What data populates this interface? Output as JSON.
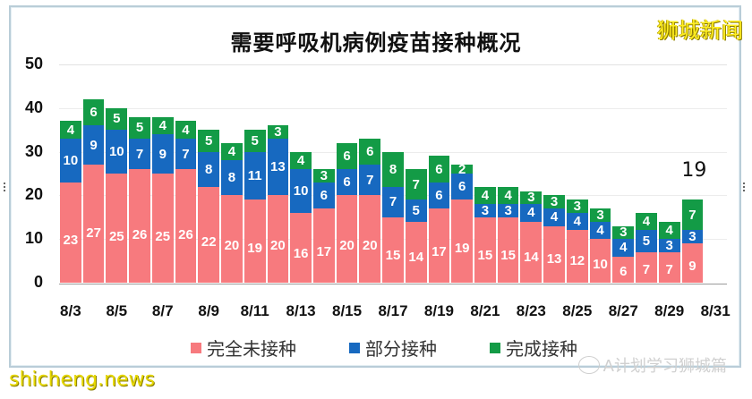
{
  "title": "需要呼吸机病例疫苗接种概况",
  "brand": "狮城新闻",
  "footer": {
    "left_watermark": "shicheng.news",
    "right_watermark": "A计划学习狮城篇"
  },
  "legend": [
    {
      "label": "完全未接种",
      "color": "#f77a7e"
    },
    {
      "label": "部分接种",
      "color": "#1769c0"
    },
    {
      "label": "完成接种",
      "color": "#139b46"
    }
  ],
  "annotation": {
    "text": "19",
    "date": "8/30"
  },
  "chart_data": {
    "type": "bar",
    "stacked": true,
    "title": "需要呼吸机病例疫苗接种概况",
    "xlabel": "",
    "ylabel": "",
    "ylim": [
      0,
      50
    ],
    "yticks": [
      "0",
      "10",
      "20",
      "30",
      "40",
      "50"
    ],
    "xticks": [
      "8/3",
      "8/5",
      "8/7",
      "8/9",
      "8/11",
      "8/13",
      "8/15",
      "8/17",
      "8/19",
      "8/21",
      "8/23",
      "8/25",
      "8/27",
      "8/29",
      "8/31"
    ],
    "grid": true,
    "legend_position": "bottom",
    "categories": [
      "8/3",
      "8/4",
      "8/5",
      "8/6",
      "8/7",
      "8/8",
      "8/9",
      "8/10",
      "8/11",
      "8/12",
      "8/13",
      "8/14",
      "8/15",
      "8/16",
      "8/17",
      "8/18",
      "8/19",
      "8/20",
      "8/21",
      "8/22",
      "8/23",
      "8/24",
      "8/25",
      "8/26",
      "8/27",
      "8/28",
      "8/29",
      "8/30"
    ],
    "series": [
      {
        "name": "完全未接种",
        "color": "#f77a7e",
        "values": [
          23,
          27,
          25,
          26,
          25,
          26,
          22,
          20,
          19,
          20,
          16,
          17,
          20,
          20,
          15,
          14,
          17,
          19,
          15,
          15,
          14,
          13,
          12,
          10,
          6,
          7,
          7,
          9
        ]
      },
      {
        "name": "部分接种",
        "color": "#1769c0",
        "values": [
          10,
          9,
          10,
          7,
          9,
          7,
          8,
          8,
          11,
          13,
          10,
          6,
          6,
          7,
          7,
          5,
          6,
          6,
          3,
          3,
          4,
          4,
          4,
          4,
          4,
          5,
          3,
          3
        ]
      },
      {
        "name": "完成接种",
        "color": "#139b46",
        "values": [
          4,
          6,
          5,
          5,
          4,
          4,
          5,
          4,
          5,
          3,
          4,
          3,
          6,
          6,
          8,
          7,
          6,
          2,
          4,
          4,
          3,
          3,
          3,
          3,
          3,
          4,
          4,
          7
        ]
      }
    ],
    "annotations": [
      {
        "x": "8/30",
        "text": "19"
      }
    ]
  }
}
